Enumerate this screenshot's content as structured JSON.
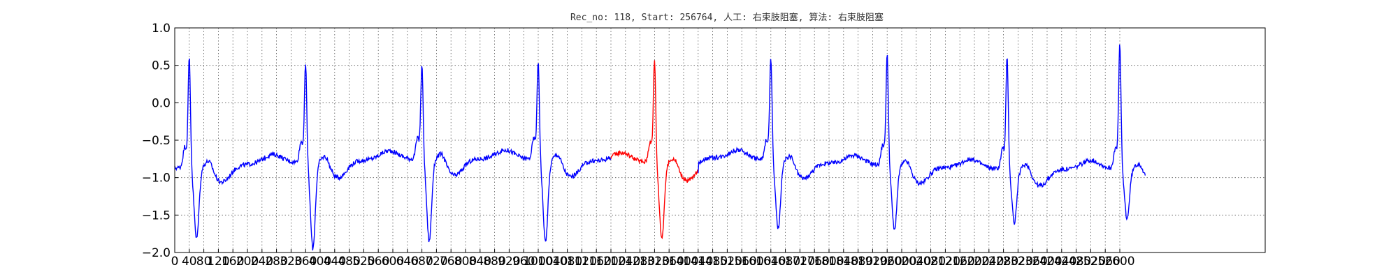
{
  "chart_data": {
    "type": "line",
    "title": "Rec_no: 118, Start: 256764, 人工: 右束肢阻塞, 算法: 右束肢阻塞",
    "xlabel": "",
    "ylabel": "",
    "xlim": [
      0,
      3000
    ],
    "ylim": [
      -2.0,
      1.0
    ],
    "grid": true,
    "grid_style": "dotted",
    "y_ticks": [
      1.0,
      0.5,
      0.0,
      -0.5,
      -1.0,
      -1.5,
      -2.0
    ],
    "y_tick_labels": [
      "1.0",
      "0.5",
      "0.0",
      "−0.5",
      "−1.0",
      "−1.5",
      "−2.0"
    ],
    "x_ticks": [
      0,
      40,
      80,
      120,
      160,
      200,
      240,
      280,
      320,
      360,
      400,
      440,
      480,
      520,
      560,
      600,
      640,
      680,
      720,
      760,
      800,
      840,
      880,
      920,
      960,
      1000,
      1040,
      1080,
      1120,
      1160,
      1200,
      1240,
      1280,
      1320,
      1360,
      1400,
      1440,
      1480,
      1520,
      1560,
      1600,
      1640,
      1680,
      1720,
      1760,
      1800,
      1840,
      1880,
      1920,
      1960,
      2000,
      2040,
      2080,
      2120,
      2160,
      2200,
      2240,
      2280,
      2320,
      2360,
      2400,
      2440,
      2480,
      2520,
      2560,
      2600
    ],
    "beat_peaks_x": [
      40,
      360,
      680,
      1000,
      1320,
      1640,
      1960,
      2290,
      2600
    ],
    "highlight_range": [
      1200,
      1440
    ],
    "series": [
      {
        "segment": "before",
        "color": "#0000ff",
        "x_range": [
          0,
          1200
        ]
      },
      {
        "segment": "highlight",
        "color": "#ff0000",
        "x_range": [
          1200,
          1440
        ]
      },
      {
        "segment": "after",
        "color": "#0000ff",
        "x_range": [
          1440,
          2670
        ]
      }
    ]
  }
}
